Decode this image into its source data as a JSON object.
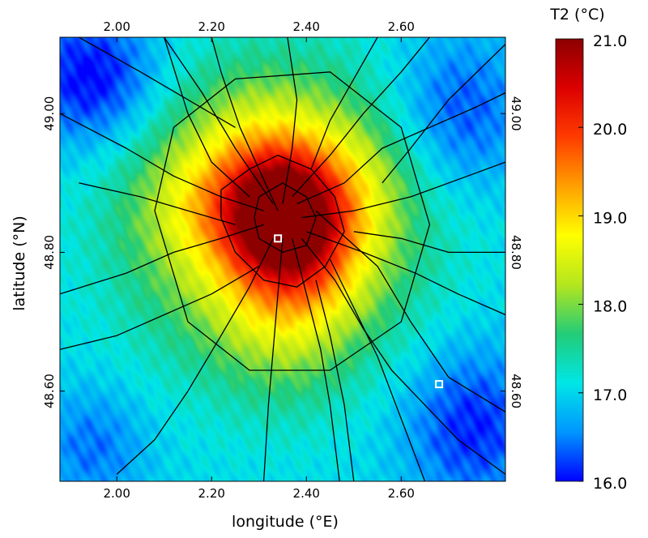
{
  "chart_data": {
    "type": "heatmap",
    "title": "",
    "xlabel": "longitude (°E)",
    "ylabel": "latitude (°N)",
    "xlim": [
      1.88,
      2.82
    ],
    "ylim": [
      48.47,
      49.11
    ],
    "x_ticks": [
      {
        "value": 2.0,
        "label": "2.00"
      },
      {
        "value": 2.2,
        "label": "2.20"
      },
      {
        "value": 2.4,
        "label": "2.40"
      },
      {
        "value": 2.6,
        "label": "2.60"
      }
    ],
    "y_ticks": [
      {
        "value": 48.6,
        "label": "48.60"
      },
      {
        "value": 48.8,
        "label": "48.80"
      },
      {
        "value": 49.0,
        "label": "49.00"
      }
    ],
    "colorbar": {
      "title": "T2 (°C)",
      "min": 16.0,
      "max": 21.0,
      "ticks": [
        {
          "value": 16.0,
          "label": "16.0"
        },
        {
          "value": 17.0,
          "label": "17.0"
        },
        {
          "value": 18.0,
          "label": "18.0"
        },
        {
          "value": 19.0,
          "label": "19.0"
        },
        {
          "value": 20.0,
          "label": "20.0"
        },
        {
          "value": 21.0,
          "label": "21.0"
        }
      ],
      "colormap": [
        "#0000ff",
        "#0096ff",
        "#00e6e6",
        "#22cc77",
        "#b4e61e",
        "#ffff00",
        "#ffa000",
        "#ff3c00",
        "#dc0000",
        "#8c0000"
      ]
    },
    "field_features": [
      {
        "type": "background",
        "value": 17.0
      },
      {
        "type": "background",
        "lon": 1.95,
        "lat": 49.05,
        "sx": 0.1,
        "sy": 0.07,
        "value": -1.1
      },
      {
        "type": "background",
        "lon": 2.75,
        "lat": 48.55,
        "sx": 0.1,
        "sy": 0.08,
        "value": -0.9
      },
      {
        "type": "background",
        "lon": 2.72,
        "lat": 49.0,
        "sx": 0.1,
        "sy": 0.08,
        "value": -0.8
      },
      {
        "type": "background",
        "lon": 1.95,
        "lat": 48.52,
        "sx": 0.08,
        "sy": 0.06,
        "value": -0.6
      },
      {
        "type": "hotspot",
        "lon": 2.345,
        "lat": 48.86,
        "sx": 0.07,
        "sy": 0.05,
        "value": 2.3
      },
      {
        "type": "hotspot",
        "lon": 2.39,
        "lat": 48.81,
        "sx": 0.09,
        "sy": 0.06,
        "value": 1.0
      },
      {
        "type": "hotspot",
        "lon": 2.33,
        "lat": 48.85,
        "sx": 0.2,
        "sy": 0.14,
        "value": 2.0
      },
      {
        "type": "hotspot",
        "lon": 2.36,
        "lat": 48.75,
        "sx": 0.1,
        "sy": 0.1,
        "value": 0.8
      },
      {
        "type": "hotspot",
        "lon": 2.2,
        "lat": 48.87,
        "sx": 0.1,
        "sy": 0.06,
        "value": 0.6
      },
      {
        "type": "hotspot",
        "lon": 2.48,
        "lat": 48.9,
        "sx": 0.09,
        "sy": 0.06,
        "value": 0.5
      },
      {
        "type": "hotspot",
        "lon": 2.32,
        "lat": 48.95,
        "sx": 0.1,
        "sy": 0.06,
        "value": 0.5
      }
    ],
    "roads": [
      [
        [
          2.34,
          48.86
        ],
        [
          2.3,
          48.92
        ],
        [
          2.26,
          48.98
        ],
        [
          2.22,
          49.06
        ],
        [
          2.2,
          49.11
        ]
      ],
      [
        [
          2.35,
          48.87
        ],
        [
          2.37,
          48.95
        ],
        [
          2.38,
          49.02
        ],
        [
          2.36,
          49.11
        ]
      ],
      [
        [
          2.37,
          48.88
        ],
        [
          2.45,
          48.94
        ],
        [
          2.52,
          49.0
        ],
        [
          2.6,
          49.06
        ],
        [
          2.66,
          49.11
        ]
      ],
      [
        [
          2.38,
          48.87
        ],
        [
          2.48,
          48.9
        ],
        [
          2.56,
          48.95
        ],
        [
          2.66,
          48.98
        ],
        [
          2.76,
          49.01
        ],
        [
          2.82,
          49.03
        ]
      ],
      [
        [
          2.39,
          48.85
        ],
        [
          2.5,
          48.86
        ],
        [
          2.62,
          48.88
        ],
        [
          2.74,
          48.91
        ],
        [
          2.82,
          48.93
        ]
      ],
      [
        [
          2.4,
          48.83
        ],
        [
          2.52,
          48.8
        ],
        [
          2.63,
          48.77
        ],
        [
          2.72,
          48.74
        ],
        [
          2.82,
          48.71
        ]
      ],
      [
        [
          2.39,
          48.82
        ],
        [
          2.46,
          48.76
        ],
        [
          2.52,
          48.69
        ],
        [
          2.58,
          48.63
        ],
        [
          2.65,
          48.58
        ],
        [
          2.72,
          48.53
        ],
        [
          2.82,
          48.48
        ]
      ],
      [
        [
          2.37,
          48.82
        ],
        [
          2.4,
          48.74
        ],
        [
          2.43,
          48.66
        ],
        [
          2.45,
          48.58
        ],
        [
          2.47,
          48.47
        ]
      ],
      [
        [
          2.35,
          48.82
        ],
        [
          2.34,
          48.74
        ],
        [
          2.33,
          48.66
        ],
        [
          2.32,
          48.58
        ],
        [
          2.31,
          48.47
        ]
      ],
      [
        [
          2.33,
          48.82
        ],
        [
          2.28,
          48.75
        ],
        [
          2.22,
          48.68
        ],
        [
          2.15,
          48.6
        ],
        [
          2.08,
          48.53
        ],
        [
          2.0,
          48.48
        ]
      ],
      [
        [
          2.31,
          48.84
        ],
        [
          2.22,
          48.82
        ],
        [
          2.12,
          48.8
        ],
        [
          2.02,
          48.77
        ],
        [
          1.88,
          48.74
        ]
      ],
      [
        [
          2.31,
          48.86
        ],
        [
          2.22,
          48.88
        ],
        [
          2.12,
          48.91
        ],
        [
          2.02,
          48.95
        ],
        [
          1.88,
          49.0
        ]
      ],
      [
        [
          2.33,
          48.87
        ],
        [
          2.25,
          48.95
        ],
        [
          2.18,
          49.03
        ],
        [
          2.1,
          49.11
        ]
      ],
      [
        [
          2.42,
          48.86
        ],
        [
          2.55,
          48.78
        ],
        [
          2.62,
          48.7
        ],
        [
          2.7,
          48.62
        ],
        [
          2.82,
          48.57
        ]
      ],
      [
        [
          2.1,
          49.11
        ],
        [
          2.15,
          49.0
        ],
        [
          2.2,
          48.93
        ],
        [
          2.28,
          48.88
        ]
      ],
      [
        [
          1.92,
          48.9
        ],
        [
          2.05,
          48.88
        ],
        [
          2.15,
          48.86
        ],
        [
          2.25,
          48.84
        ]
      ],
      [
        [
          1.88,
          48.66
        ],
        [
          2.0,
          48.68
        ],
        [
          2.1,
          48.71
        ],
        [
          2.2,
          48.74
        ],
        [
          2.3,
          48.78
        ]
      ],
      [
        [
          2.5,
          48.47
        ],
        [
          2.48,
          48.58
        ],
        [
          2.45,
          48.68
        ],
        [
          2.42,
          48.76
        ]
      ],
      [
        [
          2.65,
          48.47
        ],
        [
          2.6,
          48.56
        ],
        [
          2.55,
          48.65
        ],
        [
          2.5,
          48.72
        ],
        [
          2.45,
          48.79
        ]
      ],
      [
        [
          2.82,
          48.8
        ],
        [
          2.7,
          48.8
        ],
        [
          2.6,
          48.82
        ],
        [
          2.5,
          48.83
        ]
      ],
      [
        [
          2.22,
          48.89
        ],
        [
          2.28,
          48.92
        ],
        [
          2.34,
          48.94
        ],
        [
          2.41,
          48.92
        ],
        [
          2.46,
          48.88
        ],
        [
          2.48,
          48.83
        ],
        [
          2.44,
          48.78
        ],
        [
          2.38,
          48.75
        ],
        [
          2.31,
          48.76
        ],
        [
          2.25,
          48.8
        ],
        [
          2.22,
          48.85
        ],
        [
          2.22,
          48.89
        ]
      ],
      [
        [
          2.3,
          48.88
        ],
        [
          2.35,
          48.9
        ],
        [
          2.4,
          48.88
        ],
        [
          2.42,
          48.85
        ],
        [
          2.4,
          48.81
        ],
        [
          2.35,
          48.8
        ],
        [
          2.3,
          48.82
        ],
        [
          2.29,
          48.85
        ],
        [
          2.3,
          48.88
        ]
      ],
      [
        [
          2.08,
          48.86
        ],
        [
          2.12,
          48.98
        ],
        [
          2.25,
          49.05
        ],
        [
          2.45,
          49.06
        ],
        [
          2.6,
          48.98
        ],
        [
          2.66,
          48.84
        ],
        [
          2.6,
          48.7
        ],
        [
          2.45,
          48.63
        ],
        [
          2.28,
          48.63
        ],
        [
          2.15,
          48.7
        ],
        [
          2.08,
          48.86
        ]
      ],
      [
        [
          1.92,
          49.11
        ],
        [
          2.05,
          49.06
        ],
        [
          2.15,
          49.02
        ],
        [
          2.25,
          48.98
        ]
      ],
      [
        [
          2.55,
          49.11
        ],
        [
          2.5,
          49.05
        ],
        [
          2.45,
          48.99
        ],
        [
          2.41,
          48.92
        ]
      ],
      [
        [
          2.82,
          49.1
        ],
        [
          2.7,
          49.02
        ],
        [
          2.62,
          48.95
        ],
        [
          2.56,
          48.9
        ]
      ]
    ],
    "markers": [
      {
        "lon": 2.34,
        "lat": 48.82
      },
      {
        "lon": 2.68,
        "lat": 48.61
      }
    ]
  }
}
